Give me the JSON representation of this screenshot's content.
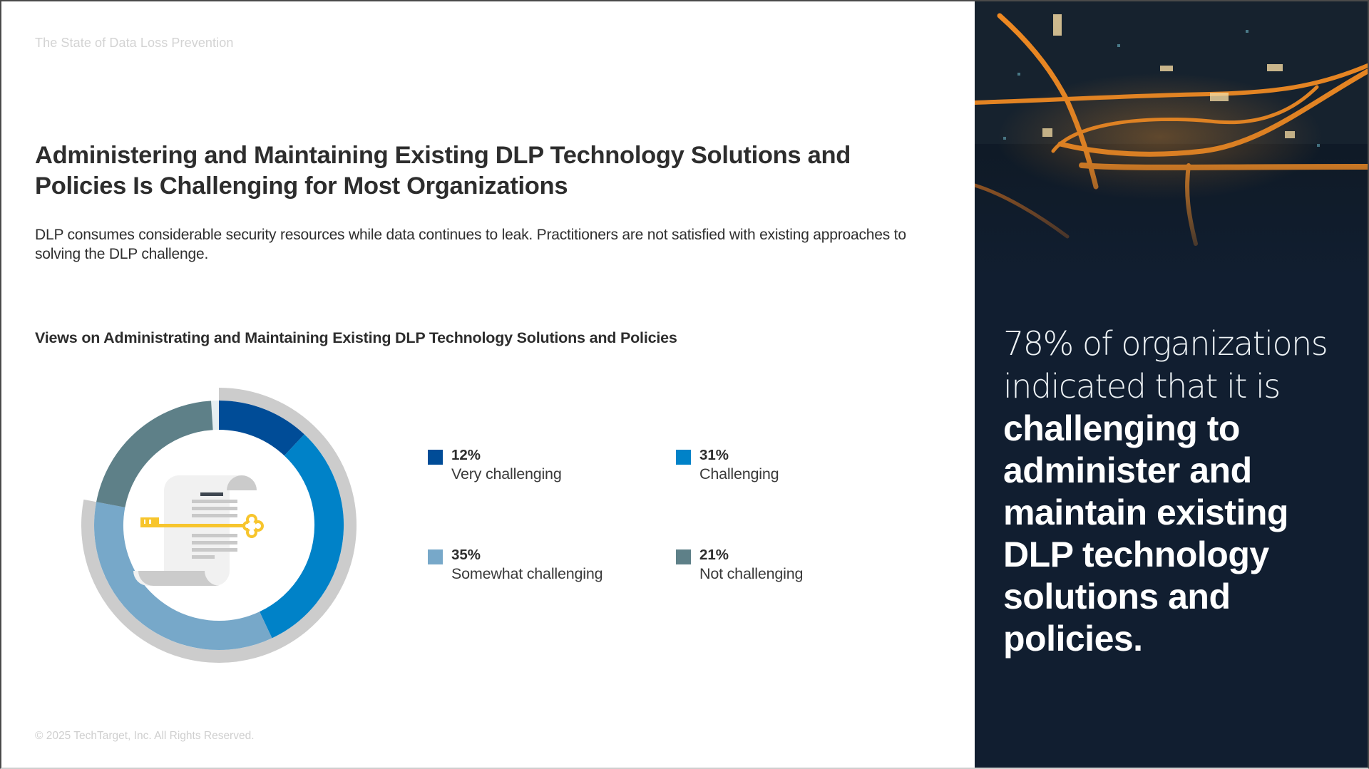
{
  "header": {
    "kicker": "The State of Data Loss Prevention"
  },
  "main": {
    "headline": "Administering and Maintaining Existing DLP Technology Solutions and Policies Is Challenging for Most Organizations",
    "body": "DLP consumes considerable security resources while data continues to leak. Practitioners are not satisfied with existing approaches to solving the DLP challenge.",
    "chart_title": "Views on Administrating and Maintaining Existing DLP Technology Solutions and Policies"
  },
  "legend": [
    {
      "pct": "12%",
      "label": "Very challenging",
      "color": "#004c97"
    },
    {
      "pct": "31%",
      "label": "Challenging",
      "color": "#0082c8"
    },
    {
      "pct": "35%",
      "label": "Somewhat challenging",
      "color": "#77a8c9"
    },
    {
      "pct": "21%",
      "label": "Not challenging",
      "color": "#5e8088"
    }
  ],
  "chart_data": {
    "type": "pie",
    "subtype": "donut",
    "title": "Views on Administrating and Maintaining Existing DLP Technology Solutions and Policies",
    "categories": [
      "Very challenging",
      "Challenging",
      "Somewhat challenging",
      "Not challenging"
    ],
    "values": [
      12,
      31,
      35,
      21
    ],
    "unit": "%",
    "colors": [
      "#004c97",
      "#0082c8",
      "#77a8c9",
      "#5e8088"
    ],
    "highlight": {
      "label": "Challenging (combined)",
      "value": 78,
      "ring_color": "#cccccc"
    },
    "legend_position": "right",
    "center_icon": "document-with-key"
  },
  "callout": {
    "light_text": "78% of organizations indicated that it is ",
    "bold_text": "challenging to administer and maintain existing DLP technology solutions and policies."
  },
  "footer": {
    "copyright": "© 2025 TechTarget, Inc. All Rights Reserved."
  },
  "colors": {
    "panel_bg": "#111e30",
    "text_dark": "#2d2d2d",
    "muted": "#d3d3d3"
  }
}
